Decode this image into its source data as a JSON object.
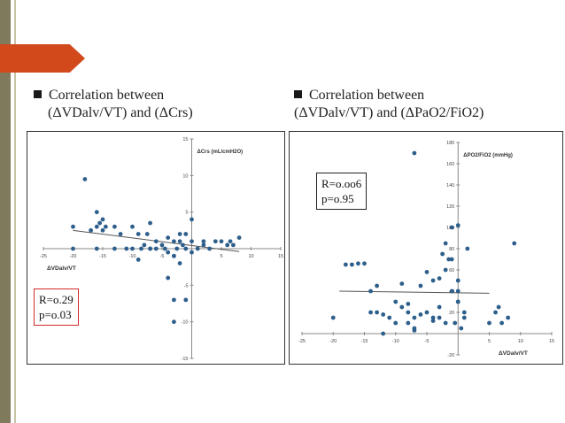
{
  "slide": {
    "left_heading": {
      "line1": "Correlation between",
      "line2": "(ΔVDalv/VT) and (ΔCrs)"
    },
    "right_heading": {
      "line1": "Correlation between",
      "line2": "(ΔVDalv/VT) and (ΔPaO2/FiO2)"
    },
    "accent_color": "#d2491c"
  },
  "chart_data": [
    {
      "type": "scatter",
      "xlabel": "ΔVDalv/VT",
      "ylabel": "ΔCrs (mL/cmH2O)",
      "xlim": [
        -25,
        15
      ],
      "ylim": [
        -15,
        15
      ],
      "xticks": [
        -25,
        -20,
        -15,
        -10,
        -5,
        5,
        10,
        15
      ],
      "yticks": [
        15,
        10,
        5,
        -5,
        -10,
        -15
      ],
      "marker_color": "#2e5f8c",
      "stats": {
        "r": "R=o.29",
        "p": "p=o.03"
      },
      "trend": {
        "x": [
          -20,
          8
        ],
        "y": [
          2.5,
          -0.4
        ]
      },
      "points": {
        "x": [
          -18,
          -20,
          -17,
          -16,
          -15.5,
          -15,
          -14.5,
          -16,
          -15,
          -13,
          -12,
          -11,
          -10,
          -10,
          -9,
          -8.5,
          -8,
          -7.5,
          -7,
          -7,
          -6,
          -6,
          -5,
          -4.5,
          -4,
          -4,
          -3,
          -3,
          -2.5,
          -2,
          -2,
          -1.5,
          -1,
          -1,
          0,
          0,
          0,
          1,
          2,
          2,
          3,
          4,
          5,
          6,
          6.5,
          7,
          8,
          -9,
          -3,
          -3,
          -2,
          -1,
          -4,
          -3,
          -7,
          -16,
          -13,
          -20
        ],
        "y": [
          9.5,
          3,
          2.5,
          3,
          3.5,
          4,
          3,
          5,
          2.5,
          3,
          2,
          0,
          0,
          3,
          2,
          0,
          0.5,
          2,
          0,
          3.5,
          1,
          0,
          0.5,
          0,
          1.5,
          -0.5,
          1,
          -1,
          0,
          1,
          2,
          0.5,
          0,
          2,
          1,
          -0.5,
          4,
          0,
          1,
          0.5,
          0,
          1,
          1,
          0.5,
          1,
          0.5,
          1.5,
          -1.5,
          -10,
          -1,
          -2,
          -7,
          -4,
          -7,
          0,
          0,
          0,
          0
        ]
      }
    },
    {
      "type": "scatter",
      "xlabel": "ΔVDalv/VT",
      "ylabel": "ΔPO2/FiO2 (mmHg)",
      "xlim": [
        -25,
        15
      ],
      "ylim": [
        -20,
        180
      ],
      "xticks": [
        -25,
        -20,
        -15,
        -10,
        -5,
        5,
        10,
        15
      ],
      "yticks": [
        180,
        160,
        140,
        120,
        100,
        80,
        60,
        40,
        20,
        -20
      ],
      "marker_color": "#2e5f8c",
      "stats": {
        "r": "R=o.oo6",
        "p": "p=o.95"
      },
      "trend": {
        "x": [
          -19,
          5
        ],
        "y": [
          40,
          38
        ]
      },
      "points": {
        "x": [
          -7,
          -20,
          -18,
          -17,
          -16,
          -15,
          -14,
          -13,
          -12,
          -11,
          -10,
          -9,
          -9,
          -8,
          -8,
          -7,
          -7,
          -6,
          -6,
          -5,
          -5,
          -4,
          -4,
          -3,
          -3,
          -2.5,
          -2,
          -2,
          -1.5,
          -1,
          -1,
          0,
          0,
          0,
          0,
          1,
          1,
          1.5,
          5,
          6,
          6.5,
          7,
          8,
          9,
          -13,
          -10,
          -8,
          -7,
          -4,
          -3,
          -2,
          -1,
          0,
          -0.5,
          0.5,
          -14,
          -12
        ],
        "y": [
          170,
          15,
          65,
          65,
          66,
          66,
          40,
          20,
          18,
          15,
          10,
          47,
          25,
          20,
          28,
          5,
          15,
          45,
          18,
          58,
          20,
          50,
          12,
          52,
          25,
          75,
          10,
          60,
          70,
          40,
          100,
          30,
          50,
          30,
          102,
          20,
          15,
          80,
          10,
          20,
          25,
          10,
          15,
          85,
          45,
          30,
          10,
          3,
          15,
          15,
          85,
          70,
          40,
          10,
          5,
          20,
          0
        ]
      }
    }
  ]
}
